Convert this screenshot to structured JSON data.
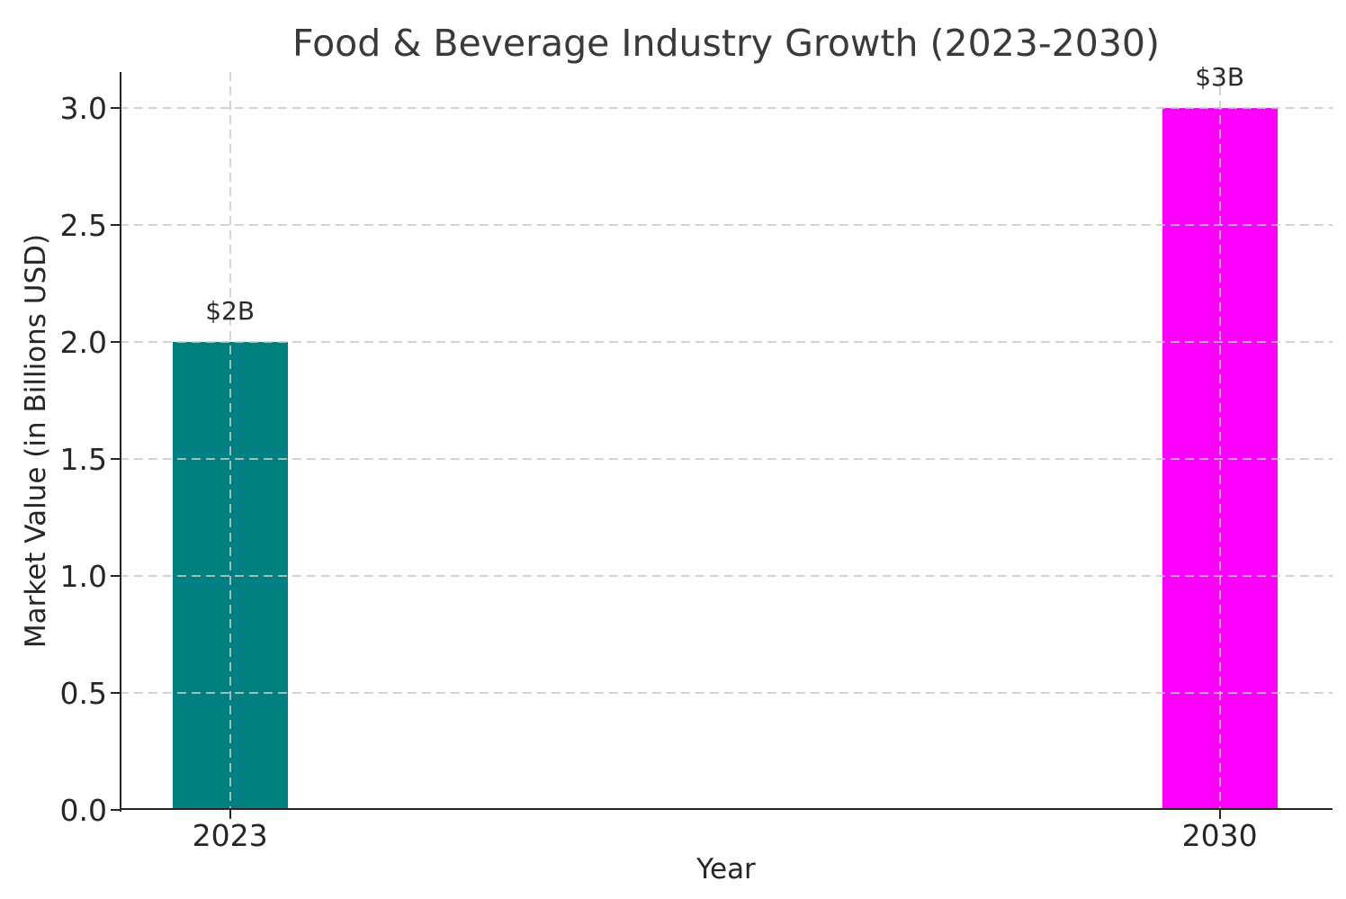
{
  "colors": {
    "background": "#ffffff",
    "title_text": "#3a3a3a",
    "tick_text": "#262626",
    "spine": "#262626",
    "grid": "#c9c9c9",
    "teal_bar": "#008080",
    "magenta_bar": "#ff00ff"
  },
  "chart_data": {
    "type": "bar",
    "title": "Food & Beverage Industry Growth (2023-2030)",
    "xlabel": "Year",
    "ylabel": "Market Value (in Billions USD)",
    "categories": [
      "2023",
      "2030"
    ],
    "values": [
      2.0,
      3.0
    ],
    "bar_labels": [
      "$2B",
      "$3B"
    ],
    "bar_colors": [
      "#008080",
      "#ff00ff"
    ],
    "ytick_values": [
      0.0,
      0.5,
      1.0,
      1.5,
      2.0,
      2.5,
      3.0
    ],
    "ytick_labels": [
      "0.0",
      "0.5",
      "1.0",
      "1.5",
      "2.0",
      "2.5",
      "3.0"
    ],
    "ylim": [
      0.0,
      3.15
    ],
    "grid": "dashed gridlines on both axes, drawn above bars",
    "legend": "none",
    "spines": [
      "left",
      "bottom"
    ],
    "bar_centers_frac": [
      0.091,
      0.907
    ]
  }
}
